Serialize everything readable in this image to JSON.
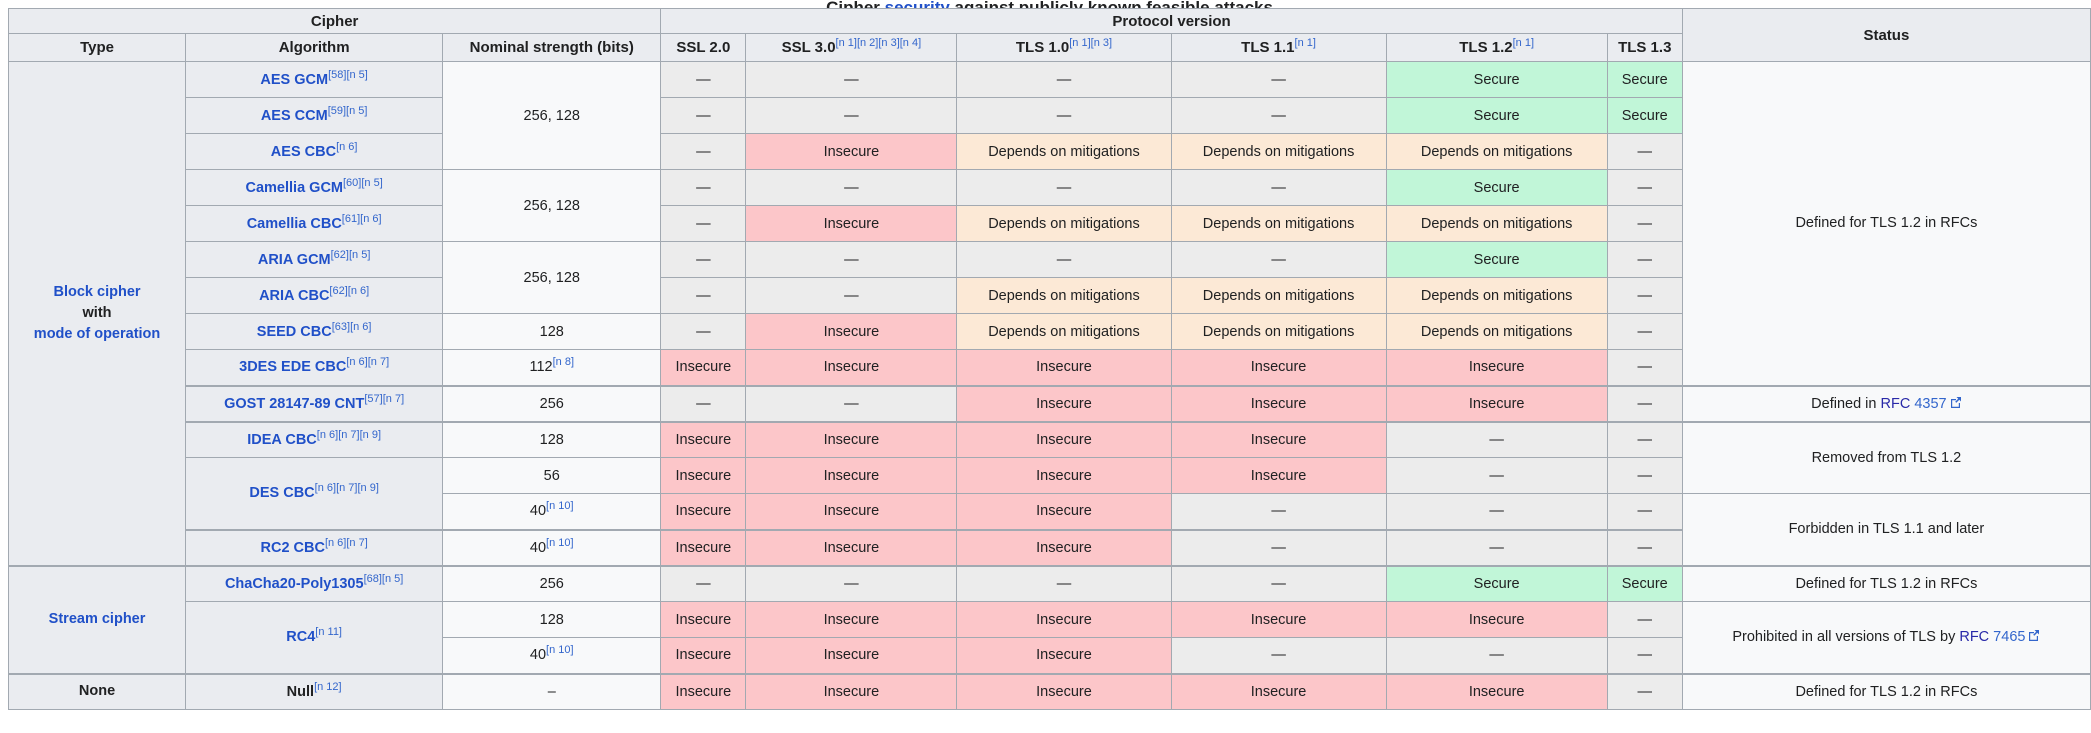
{
  "caption": {
    "prefix": "Cipher ",
    "link": "security",
    "suffix": " against publicly known feasible attacks"
  },
  "header": {
    "cipher_group": "Cipher",
    "protocol_group": "Protocol version",
    "status_label": "Status",
    "columns": [
      {
        "id": "type",
        "label": "Type",
        "refs": []
      },
      {
        "id": "algorithm",
        "label": "Algorithm",
        "refs": []
      },
      {
        "id": "strength",
        "label": "Nominal strength (bits)",
        "refs": []
      },
      {
        "id": "ssl-2-0",
        "label": "SSL 2.0",
        "refs": []
      },
      {
        "id": "ssl-3-0",
        "label": "SSL 3.0",
        "refs": [
          "n 1",
          "n 2",
          "n 3",
          "n 4"
        ]
      },
      {
        "id": "tls-1-0",
        "label": "TLS 1.0",
        "refs": [
          "n 1",
          "n 3"
        ]
      },
      {
        "id": "tls-1-1",
        "label": "TLS 1.1",
        "refs": [
          "n 1"
        ]
      },
      {
        "id": "tls-1-2",
        "label": "TLS 1.2",
        "refs": [
          "n 1"
        ]
      },
      {
        "id": "tls-1-3",
        "label": "TLS 1.3",
        "refs": []
      }
    ]
  },
  "cell_types": {
    "na": {
      "label": "—",
      "class": "na"
    },
    "secure": {
      "label": "Secure",
      "class": "secure"
    },
    "insecure": {
      "label": "Insecure",
      "class": "insecure"
    },
    "depends": {
      "label": "Depends on mitigations",
      "class": "depends"
    }
  },
  "colors": {
    "secure_bg": "#c1f6d8",
    "insecure_bg": "#fcc6c9",
    "depends_bg": "#fce9d6",
    "na_bg": "#ececec",
    "header_bg": "#eaecf0",
    "cell_bg": "#f8f9fa",
    "border": "#a2a9b1",
    "link": "#2050c8",
    "ref_link": "#3366cc",
    "rfc_link": "#2929a8"
  },
  "rows": [
    {
      "type": {
        "rowspan": 14,
        "lines": [
          {
            "text": "Block cipher",
            "link": true
          },
          {
            "text": "with",
            "link": false
          },
          {
            "text": "mode of operation",
            "link": true
          }
        ]
      },
      "alg": {
        "name": "AES GCM",
        "refs": [
          "58",
          "n 5"
        ],
        "link": true
      },
      "strength": {
        "text": "256, 128",
        "refs": [],
        "rowspan": 3
      },
      "protocol": [
        "na",
        "na",
        "na",
        "na",
        "secure",
        "secure"
      ],
      "status": {
        "rowspan": 9,
        "parts": [
          {
            "t": "Defined for TLS 1.2 in RFCs"
          }
        ]
      }
    },
    {
      "alg": {
        "name": "AES CCM",
        "refs": [
          "59",
          "n 5"
        ],
        "link": true
      },
      "protocol": [
        "na",
        "na",
        "na",
        "na",
        "secure",
        "secure"
      ]
    },
    {
      "alg": {
        "name": "AES CBC",
        "refs": [
          "n 6"
        ],
        "link": true
      },
      "protocol": [
        "na",
        "insecure",
        "depends",
        "depends",
        "depends",
        "na"
      ]
    },
    {
      "alg": {
        "name": "Camellia GCM",
        "refs": [
          "60",
          "n 5"
        ],
        "link": true
      },
      "strength": {
        "text": "256, 128",
        "refs": [],
        "rowspan": 2
      },
      "protocol": [
        "na",
        "na",
        "na",
        "na",
        "secure",
        "na"
      ]
    },
    {
      "alg": {
        "name": "Camellia CBC",
        "refs": [
          "61",
          "n 6"
        ],
        "link": true
      },
      "protocol": [
        "na",
        "insecure",
        "depends",
        "depends",
        "depends",
        "na"
      ]
    },
    {
      "alg": {
        "name": "ARIA GCM",
        "refs": [
          "62",
          "n 5"
        ],
        "link": true
      },
      "strength": {
        "text": "256, 128",
        "refs": [],
        "rowspan": 2
      },
      "protocol": [
        "na",
        "na",
        "na",
        "na",
        "secure",
        "na"
      ]
    },
    {
      "alg": {
        "name": "ARIA CBC",
        "refs": [
          "62",
          "n 6"
        ],
        "link": true
      },
      "protocol": [
        "na",
        "na",
        "depends",
        "depends",
        "depends",
        "na"
      ]
    },
    {
      "alg": {
        "name": "SEED CBC",
        "refs": [
          "63",
          "n 6"
        ],
        "link": true
      },
      "strength": {
        "text": "128",
        "refs": [],
        "rowspan": 1
      },
      "protocol": [
        "na",
        "insecure",
        "depends",
        "depends",
        "depends",
        "na"
      ]
    },
    {
      "alg": {
        "name": "3DES EDE CBC",
        "refs": [
          "n 6",
          "n 7"
        ],
        "link": true
      },
      "strength": {
        "text": "112",
        "refs": [
          "n 8"
        ],
        "rowspan": 1
      },
      "protocol": [
        "insecure",
        "insecure",
        "insecure",
        "insecure",
        "insecure",
        "na"
      ]
    },
    {
      "thick": true,
      "alg": {
        "name": "GOST 28147-89 CNT",
        "refs": [
          "57",
          "n 7"
        ],
        "link": true
      },
      "strength": {
        "text": "256",
        "refs": [],
        "rowspan": 1
      },
      "protocol": [
        "na",
        "na",
        "insecure",
        "insecure",
        "insecure",
        "na"
      ],
      "status": {
        "rowspan": 1,
        "parts": [
          {
            "t": "Defined in "
          },
          {
            "t": "RFC",
            "cls": "rfc"
          },
          {
            "t": " 4357",
            "cls": "num"
          },
          {
            "icon": "external-link"
          }
        ]
      }
    },
    {
      "thick": true,
      "alg": {
        "name": "IDEA CBC",
        "refs": [
          "n 6",
          "n 7",
          "n 9"
        ],
        "link": true
      },
      "strength": {
        "text": "128",
        "refs": [],
        "rowspan": 1
      },
      "protocol": [
        "insecure",
        "insecure",
        "insecure",
        "insecure",
        "na",
        "na"
      ],
      "status": {
        "rowspan": 2,
        "parts": [
          {
            "t": "Removed from TLS 1.2"
          }
        ]
      }
    },
    {
      "alg": {
        "name": "DES CBC",
        "refs": [
          "n 6",
          "n 7",
          "n 9"
        ],
        "link": true,
        "rowspan": 2
      },
      "strength": {
        "text": "56",
        "refs": [],
        "rowspan": 1
      },
      "protocol": [
        "insecure",
        "insecure",
        "insecure",
        "insecure",
        "na",
        "na"
      ]
    },
    {
      "strength": {
        "text": "40",
        "refs": [
          "n 10"
        ],
        "rowspan": 1
      },
      "protocol": [
        "insecure",
        "insecure",
        "insecure",
        "na",
        "na",
        "na"
      ],
      "status": {
        "rowspan": 2,
        "parts": [
          {
            "t": "Forbidden in TLS 1.1 and later"
          }
        ]
      }
    },
    {
      "thick": true,
      "alg": {
        "name": "RC2 CBC",
        "refs": [
          "n 6",
          "n 7"
        ],
        "link": true
      },
      "strength": {
        "text": "40",
        "refs": [
          "n 10"
        ],
        "rowspan": 1
      },
      "protocol": [
        "insecure",
        "insecure",
        "insecure",
        "na",
        "na",
        "na"
      ]
    },
    {
      "thick": true,
      "type": {
        "rowspan": 3,
        "lines": [
          {
            "text": "Stream cipher",
            "link": true
          }
        ]
      },
      "alg": {
        "name": "ChaCha20-Poly1305",
        "refs": [
          "68",
          "n 5"
        ],
        "link": true
      },
      "strength": {
        "text": "256",
        "refs": [],
        "rowspan": 1
      },
      "protocol": [
        "na",
        "na",
        "na",
        "na",
        "secure",
        "secure"
      ],
      "status": {
        "rowspan": 1,
        "parts": [
          {
            "t": "Defined for TLS 1.2 in RFCs"
          }
        ]
      }
    },
    {
      "alg": {
        "name": "RC4",
        "refs": [
          "n 11"
        ],
        "link": true,
        "rowspan": 2
      },
      "strength": {
        "text": "128",
        "refs": [],
        "rowspan": 1
      },
      "protocol": [
        "insecure",
        "insecure",
        "insecure",
        "insecure",
        "insecure",
        "na"
      ],
      "status": {
        "rowspan": 2,
        "parts": [
          {
            "t": "Prohibited in all versions of TLS by "
          },
          {
            "t": "RFC",
            "cls": "rfc"
          },
          {
            "t": " 7465",
            "cls": "num"
          },
          {
            "icon": "external-link"
          }
        ]
      }
    },
    {
      "strength": {
        "text": "40",
        "refs": [
          "n 10"
        ],
        "rowspan": 1
      },
      "protocol": [
        "insecure",
        "insecure",
        "insecure",
        "na",
        "na",
        "na"
      ]
    },
    {
      "thick": true,
      "type": {
        "rowspan": 1,
        "lines": [
          {
            "text": "None",
            "link": false
          }
        ]
      },
      "alg": {
        "name": "Null",
        "refs": [
          "n 12"
        ],
        "link": false
      },
      "strength": {
        "text": "–",
        "refs": [],
        "rowspan": 1
      },
      "protocol": [
        "insecure",
        "insecure",
        "insecure",
        "insecure",
        "insecure",
        "na"
      ],
      "status": {
        "rowspan": 1,
        "parts": [
          {
            "t": "Defined for TLS 1.2 in RFCs"
          }
        ]
      }
    }
  ]
}
